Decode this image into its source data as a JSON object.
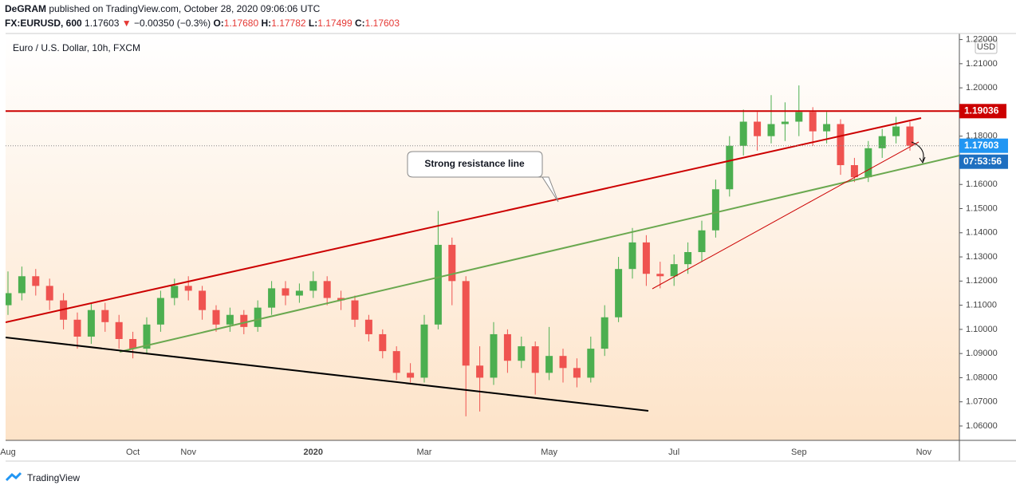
{
  "header": {
    "author": "DeGRAM",
    "published": "published on TradingView.com, October 28, 2020 09:06:06 UTC",
    "symbol": "FX:EURUSD, 600",
    "last": "1.17603",
    "arrow": "▼",
    "change": "−0.00350 (−0.3%)",
    "ohlc": [
      {
        "label": "O:",
        "value": "1.17680"
      },
      {
        "label": "H:",
        "value": "1.17782"
      },
      {
        "label": "L:",
        "value": "1.17499"
      },
      {
        "label": "C:",
        "value": "1.17603"
      }
    ]
  },
  "chart_data": {
    "type": "candlestick",
    "title": "Euro / U.S. Dollar, 10h, FXCM",
    "currency": "USD",
    "annotation": "Strong resistance line",
    "up_color": "#4caf50",
    "down_color": "#ef5350",
    "categories": [
      "Aug",
      null,
      null,
      null,
      null,
      null,
      null,
      null,
      null,
      "Oct",
      null,
      null,
      null,
      "Nov",
      null,
      null,
      null,
      null,
      null,
      null,
      null,
      null,
      "2020",
      null,
      null,
      null,
      null,
      null,
      null,
      null,
      "Mar",
      null,
      null,
      null,
      null,
      null,
      null,
      null,
      null,
      "May",
      null,
      null,
      null,
      null,
      null,
      null,
      null,
      null,
      "Jul",
      null,
      null,
      null,
      null,
      null,
      null,
      null,
      null,
      "Sep",
      null,
      null,
      null,
      null,
      null,
      null,
      null,
      null,
      "Nov"
    ],
    "open": [
      1.11,
      1.115,
      1.122,
      1.118,
      1.112,
      1.104,
      1.097,
      1.108,
      1.103,
      1.096,
      1.092,
      1.102,
      1.113,
      1.118,
      1.116,
      1.108,
      1.102,
      1.106,
      1.101,
      1.109,
      1.117,
      1.114,
      1.116,
      1.12,
      1.113,
      1.112,
      1.104,
      1.098,
      1.091,
      1.082,
      1.08,
      1.102,
      1.135,
      1.12,
      1.085,
      1.08,
      1.098,
      1.087,
      1.093,
      1.082,
      1.089,
      1.084,
      1.08,
      1.092,
      1.105,
      1.125,
      1.136,
      1.123,
      1.122,
      1.127,
      1.132,
      1.141,
      1.158,
      1.176,
      1.186,
      1.18,
      1.185,
      1.186,
      1.19,
      1.182,
      1.185,
      1.168,
      1.163,
      1.175,
      1.18,
      1.184,
      null
    ],
    "high": [
      1.124,
      1.126,
      1.125,
      1.121,
      1.115,
      1.107,
      1.111,
      1.111,
      1.106,
      1.099,
      1.105,
      1.116,
      1.121,
      1.122,
      1.118,
      1.11,
      1.109,
      1.108,
      1.112,
      1.12,
      1.12,
      1.119,
      1.124,
      1.122,
      1.116,
      1.114,
      1.106,
      1.1,
      1.093,
      1.086,
      1.106,
      1.149,
      1.138,
      1.122,
      1.093,
      1.103,
      1.1,
      1.097,
      1.095,
      1.101,
      1.092,
      1.088,
      1.097,
      1.11,
      1.13,
      1.142,
      1.139,
      1.128,
      1.131,
      1.136,
      1.145,
      1.162,
      1.18,
      1.191,
      1.19,
      1.197,
      1.194,
      1.201,
      1.192,
      1.19,
      1.187,
      1.171,
      1.178,
      1.183,
      1.188,
      1.186,
      null
    ],
    "low": [
      1.106,
      1.112,
      1.114,
      1.108,
      1.1,
      1.092,
      1.094,
      1.099,
      1.092,
      1.088,
      1.09,
      1.099,
      1.11,
      1.112,
      1.104,
      1.099,
      1.099,
      1.098,
      1.099,
      1.106,
      1.11,
      1.111,
      1.113,
      1.11,
      1.108,
      1.101,
      1.095,
      1.088,
      1.079,
      1.078,
      1.078,
      1.1,
      1.11,
      1.064,
      1.066,
      1.077,
      1.082,
      1.084,
      1.073,
      1.079,
      1.078,
      1.076,
      1.078,
      1.089,
      1.103,
      1.121,
      1.118,
      1.117,
      1.118,
      1.123,
      1.128,
      1.138,
      1.155,
      1.172,
      1.174,
      1.177,
      1.178,
      1.18,
      1.176,
      1.177,
      1.164,
      1.161,
      1.161,
      1.171,
      1.177,
      1.174,
      null
    ],
    "close": [
      1.115,
      1.122,
      1.118,
      1.112,
      1.104,
      1.097,
      1.108,
      1.103,
      1.096,
      1.092,
      1.102,
      1.113,
      1.118,
      1.116,
      1.108,
      1.102,
      1.106,
      1.101,
      1.109,
      1.117,
      1.114,
      1.116,
      1.12,
      1.113,
      1.112,
      1.104,
      1.098,
      1.091,
      1.082,
      1.08,
      1.102,
      1.135,
      1.12,
      1.085,
      1.08,
      1.098,
      1.087,
      1.093,
      1.082,
      1.089,
      1.084,
      1.08,
      1.092,
      1.105,
      1.125,
      1.136,
      1.123,
      1.122,
      1.127,
      1.132,
      1.141,
      1.158,
      1.176,
      1.186,
      1.18,
      1.185,
      1.186,
      1.19,
      1.182,
      1.185,
      1.168,
      1.163,
      1.175,
      1.18,
      1.184,
      1.17603,
      null
    ],
    "level": {
      "value": 1.19036,
      "color": "#cc0000"
    },
    "last_price": {
      "value": 1.17603,
      "color": "#2196f3"
    },
    "countdown": "07:53:56",
    "ylim": [
      1.05405,
      1.2225
    ],
    "yticks": [
      {
        "value": 1.06,
        "label": "1.06000"
      },
      {
        "value": 1.07,
        "label": "1.07000"
      },
      {
        "value": 1.08,
        "label": "1.08000"
      },
      {
        "value": 1.09,
        "label": "1.09000"
      },
      {
        "value": 1.1,
        "label": "1.10000"
      },
      {
        "value": 1.11,
        "label": "1.11000"
      },
      {
        "value": 1.12,
        "label": "1.12000"
      },
      {
        "value": 1.13,
        "label": "1.13000"
      },
      {
        "value": 1.14,
        "label": "1.14000"
      },
      {
        "value": 1.15,
        "label": "1.15000"
      },
      {
        "value": 1.16,
        "label": "1.16000"
      },
      {
        "value": 1.17,
        "label": "1.17000"
      },
      {
        "value": 1.18,
        "label": "1.18000"
      },
      {
        "value": 1.19,
        "label": "1.19000"
      },
      {
        "value": 1.2,
        "label": "1.20000"
      },
      {
        "value": 1.21,
        "label": "1.21000"
      },
      {
        "value": 1.22,
        "label": "1.22000"
      }
    ]
  },
  "footer": {
    "brand": "TradingView"
  }
}
